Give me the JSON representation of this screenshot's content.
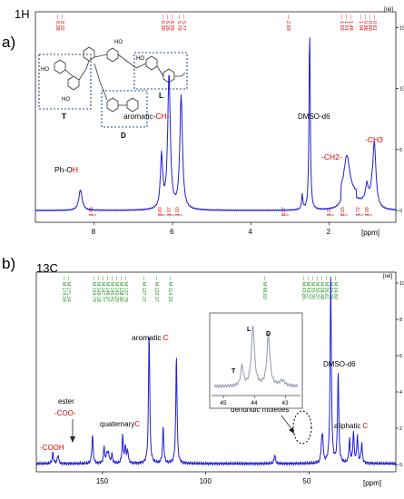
{
  "panel_a": {
    "letter": "a)",
    "nucleus": "1H",
    "corner_unit": "[rel]",
    "x_unit": "[ppm]",
    "x_ticks": [
      "8",
      "6",
      "4",
      "2"
    ],
    "y_ticks": [
      "0",
      "5",
      "10",
      "15"
    ],
    "labels": {
      "ph_oh_prefix": "Ph-O",
      "ph_oh_suffix": "H",
      "aromatic_prefix": "aromatic-",
      "aromatic_suffix": "CH-",
      "dmso": "DMSO-d6",
      "ch2": "-CH2-",
      "ch3": "-CH3"
    },
    "structure_labels": {
      "T": "T",
      "D": "D",
      "L": "L",
      "HO": "HO"
    },
    "peak_picks": [
      "8.38",
      "8.32",
      "6.30",
      "6.26",
      "6.09",
      "5.79",
      "5.77",
      "2.69",
      "1.60",
      "1.51",
      "1.48",
      "1.04",
      "0.88",
      "0.80",
      "0.61"
    ],
    "integrals": [
      "1.45",
      "3.80",
      "1.97",
      "1.00",
      "0.37",
      "1.21",
      "0.15",
      "1.72",
      "1.09"
    ],
    "chart_data": {
      "type": "line",
      "xlabel": "[ppm]",
      "xlim": [
        9.5,
        0.3
      ],
      "ylim": [
        0,
        16
      ],
      "peaks_ppm": [
        {
          "x": 8.35,
          "y": 1.7
        },
        {
          "x": 6.28,
          "y": 4.3
        },
        {
          "x": 6.09,
          "y": 11.0
        },
        {
          "x": 5.78,
          "y": 9.3
        },
        {
          "x": 2.69,
          "y": 1.2
        },
        {
          "x": 2.5,
          "y": 15.2
        },
        {
          "x": 1.55,
          "y": 3.3
        },
        {
          "x": 1.04,
          "y": 1.3
        },
        {
          "x": 0.85,
          "y": 5.6
        }
      ]
    }
  },
  "panel_b": {
    "letter": "b)",
    "nucleus": "13C",
    "corner_unit": "[rel]",
    "x_unit": "[ppm]",
    "x_ticks": [
      "150",
      "100",
      "50"
    ],
    "y_ticks": [
      "0",
      "2",
      "4",
      "6",
      "8",
      "10"
    ],
    "labels": {
      "aromatic": "aromatic",
      "aromatic_suffix": "C",
      "ester": "ester",
      "coo": "-COO-",
      "cooh": "-COOH",
      "quaternary": "quaternary",
      "quaternary_suffix": "C",
      "dendridic": "dendridic moieties",
      "dmso": "DMSO-d6",
      "aliphatic": "aliphatic",
      "aliphatic_suffix": "C"
    },
    "peak_picks": [
      "M 174.04",
      "M 171.54",
      "M 154.79",
      "M 149.18",
      "M 147.77",
      "M 146.97",
      "M 145.41",
      "M 140.20",
      "M 138.90",
      "M 137.78",
      "M 127.37",
      "M 120.57",
      "M 114.23",
      "M 66.62",
      "M 43.85",
      "M 43.37",
      "M 35.95",
      "M 30.37",
      "M 28.48",
      "M 26.61",
      "M 24.46",
      "M 24.60"
    ],
    "inset": {
      "x_ticks": [
        "45",
        "44",
        "43"
      ],
      "peak_T": "T",
      "peak_L": "L",
      "peak_D": "D"
    },
    "chart_data": {
      "type": "line",
      "xlabel": "[ppm]",
      "xlim": [
        182,
        8
      ],
      "ylim": [
        0,
        10.5
      ],
      "peaks_ppm": [
        {
          "x": 174.0,
          "y": 0.6
        },
        {
          "x": 171.5,
          "y": 0.5
        },
        {
          "x": 154.8,
          "y": 1.6
        },
        {
          "x": 149.2,
          "y": 0.9
        },
        {
          "x": 147.8,
          "y": 0.6
        },
        {
          "x": 147.0,
          "y": 0.5
        },
        {
          "x": 145.4,
          "y": 0.5
        },
        {
          "x": 140.2,
          "y": 1.5
        },
        {
          "x": 138.9,
          "y": 0.9
        },
        {
          "x": 137.8,
          "y": 0.7
        },
        {
          "x": 127.4,
          "y": 7.3
        },
        {
          "x": 120.6,
          "y": 2.0
        },
        {
          "x": 114.2,
          "y": 6.0
        },
        {
          "x": 66.6,
          "y": 0.5
        },
        {
          "x": 43.9,
          "y": 1.0
        },
        {
          "x": 43.4,
          "y": 1.2
        },
        {
          "x": 39.5,
          "y": 10.2
        },
        {
          "x": 35.9,
          "y": 5.1
        },
        {
          "x": 30.4,
          "y": 1.3
        },
        {
          "x": 28.5,
          "y": 1.7
        },
        {
          "x": 26.6,
          "y": 1.5
        },
        {
          "x": 24.5,
          "y": 1.1
        }
      ]
    }
  }
}
